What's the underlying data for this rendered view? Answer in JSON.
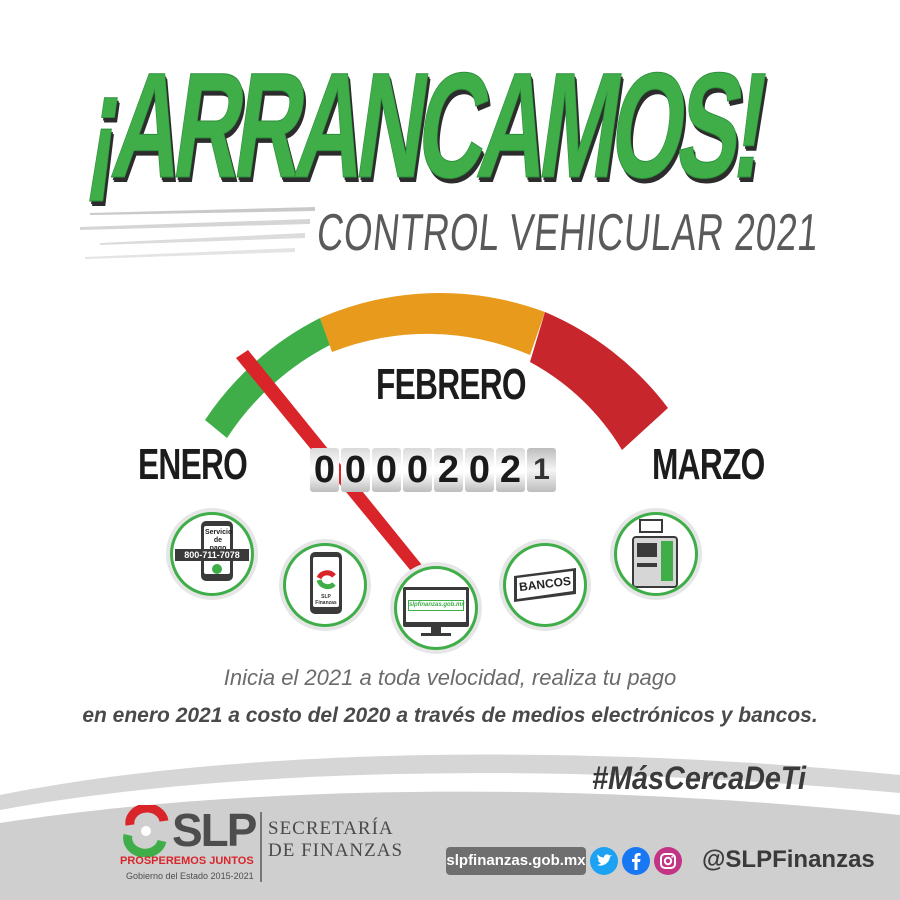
{
  "headline": {
    "title": "¡ARRANCAMOS!",
    "subtitle": "CONTROL VEHICULAR 2021"
  },
  "gauge": {
    "months": [
      "ENERO",
      "FEBRERO",
      "MARZO"
    ],
    "odometer_digits": [
      "0",
      "0",
      "0",
      "0",
      "2",
      "0",
      "2",
      "1"
    ],
    "needle_month": "ENERO",
    "colors": {
      "green": "#3fae49",
      "orange": "#e89a1c",
      "red": "#c8262d",
      "needle": "#d9252a"
    }
  },
  "payment_channels": {
    "phone": {
      "label": "Servicio de pago",
      "number": "800-711-7078"
    },
    "app": {
      "label": "SLP Finanzas"
    },
    "web": {
      "url": "slpfinanzas.gob.mx"
    },
    "banks": {
      "label": "BANCOS"
    },
    "kiosk": {
      "label": "kiosk-icon"
    }
  },
  "tagline": {
    "line1": "Inicia el 2021 a toda velocidad, realiza tu pago",
    "line2": "en enero 2021 a costo del 2020 a través de medios electrónicos y bancos."
  },
  "footer": {
    "hashtag": "#MásCercaDeTi",
    "logo": {
      "word": "SLP",
      "motto": "PROSPEREMOS JUNTOS",
      "government": "Gobierno del Estado 2015-2021"
    },
    "secretaria": [
      "SECRETARÍA",
      "DE FINANZAS"
    ],
    "url": "slpfinanzas.gob.mx",
    "handle": "@SLPFinanzas",
    "social_icons": [
      "twitter-icon",
      "facebook-icon",
      "instagram-icon"
    ],
    "social_colors": {
      "twitter": "#1da1f2",
      "facebook": "#1877f2",
      "instagram": "#c13584"
    }
  }
}
